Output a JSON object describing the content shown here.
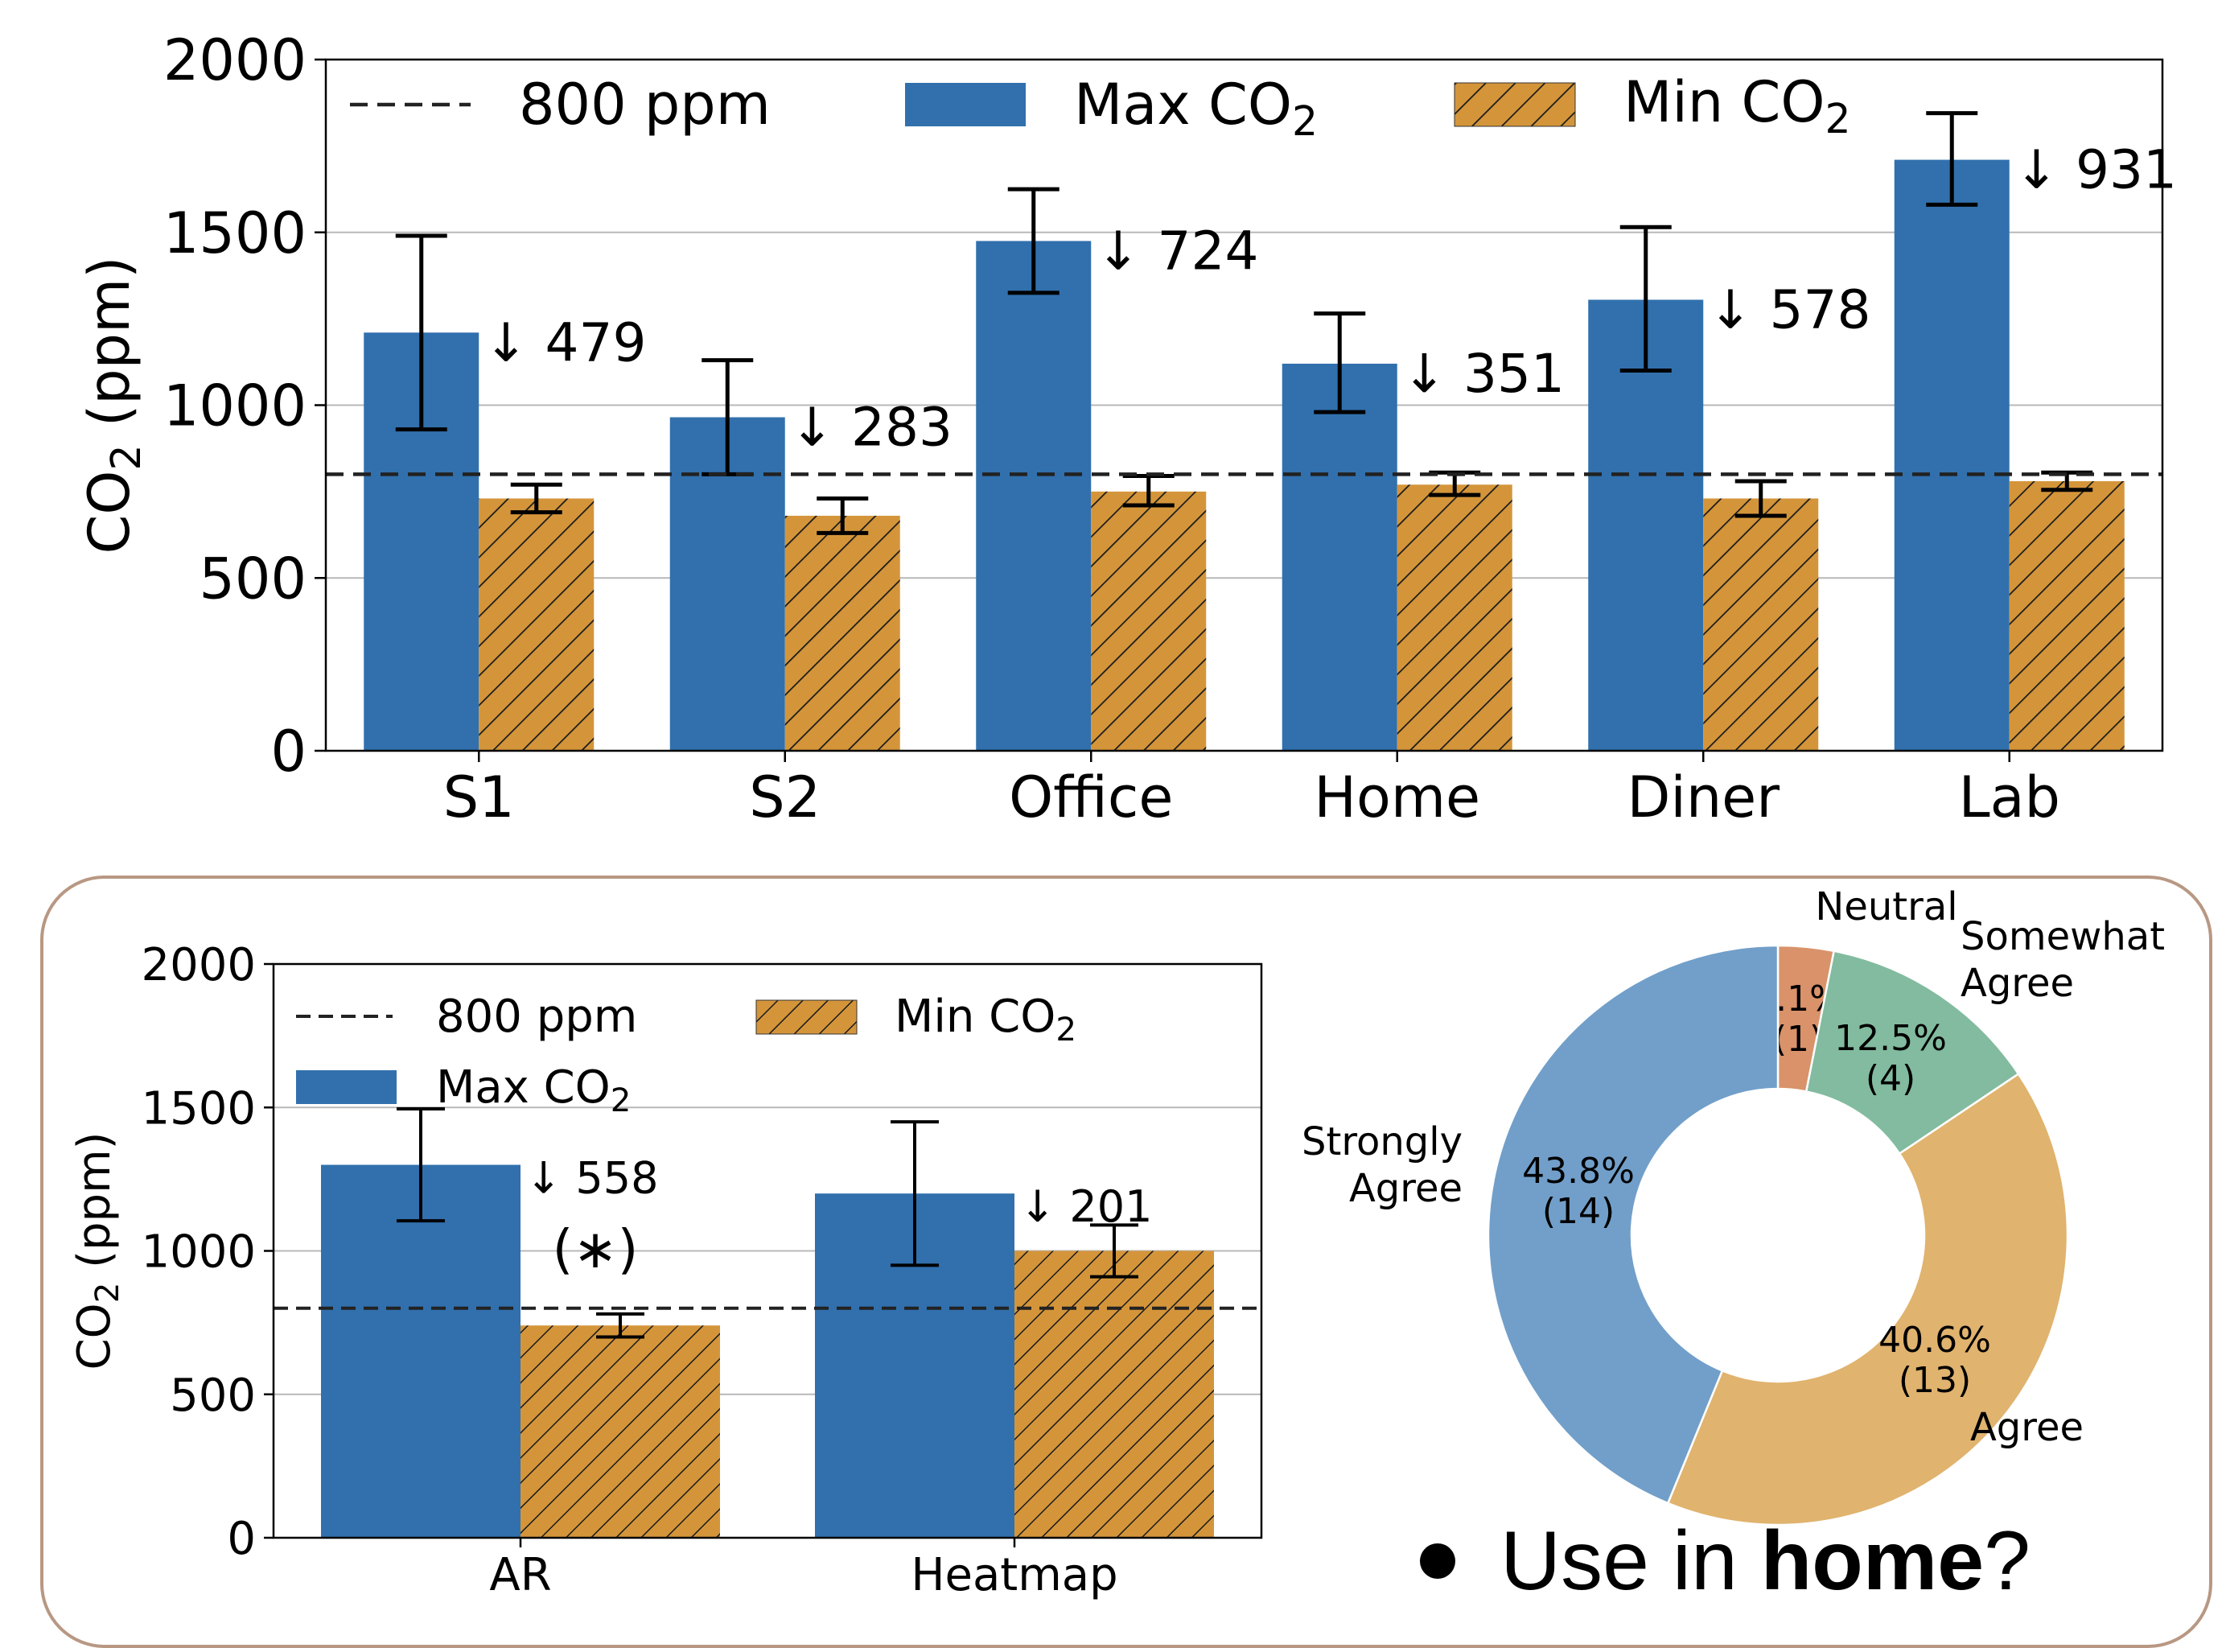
{
  "caption": {
    "prefix": "Use in ",
    "bold": "home",
    "suffix": "?"
  },
  "colors": {
    "max": "#3170ad",
    "min": "#d4953a",
    "hatch": "#1a1a1a",
    "grid": "#b8b8b8",
    "frame": "#b89883"
  },
  "chart_data": [
    {
      "type": "bar",
      "ylabel": "CO₂ (ppm)",
      "ylim": [
        0,
        2000
      ],
      "yticks": [
        0,
        500,
        1000,
        1500,
        2000
      ],
      "grid": "horizontal",
      "legend_position": "top",
      "reference_line": {
        "value": 800,
        "label": "800 ppm",
        "style": "dashed"
      },
      "categories": [
        "S1",
        "S2",
        "Office",
        "Home",
        "Diner",
        "Lab"
      ],
      "series": [
        {
          "name": "Max CO₂",
          "values": [
            1210,
            965,
            1475,
            1120,
            1305,
            1710
          ],
          "err_low": [
            930,
            800,
            1325,
            980,
            1100,
            1580
          ],
          "err_high": [
            1490,
            1130,
            1625,
            1265,
            1515,
            1845
          ]
        },
        {
          "name": "Min CO₂",
          "values": [
            730,
            680,
            750,
            770,
            730,
            780
          ],
          "err_low": [
            690,
            630,
            710,
            740,
            680,
            755
          ],
          "err_high": [
            770,
            730,
            795,
            805,
            780,
            805
          ]
        }
      ],
      "annotations": [
        "↓ 479",
        "↓ 283",
        "↓ 724",
        "↓ 351",
        "↓ 578",
        "↓ 931"
      ]
    },
    {
      "type": "bar",
      "ylabel": "CO₂ (ppm)",
      "ylim": [
        0,
        2000
      ],
      "yticks": [
        0,
        500,
        1000,
        1500,
        2000
      ],
      "grid": "horizontal",
      "legend_position": "top-left",
      "reference_line": {
        "value": 800,
        "label": "800 ppm",
        "style": "dashed"
      },
      "categories": [
        "AR",
        "Heatmap"
      ],
      "series": [
        {
          "name": "Max CO₂",
          "values": [
            1300,
            1200
          ],
          "err_low": [
            1105,
            950
          ],
          "err_high": [
            1495,
            1450
          ]
        },
        {
          "name": "Min CO₂",
          "values": [
            740,
            1000
          ],
          "err_low": [
            700,
            910
          ],
          "err_high": [
            780,
            1090
          ]
        }
      ],
      "annotations": [
        "↓ 558",
        "↓ 201"
      ],
      "significance": "(∗)"
    },
    {
      "type": "pie",
      "style": "donut",
      "slices": [
        {
          "label": "Neutral",
          "value": 3.1,
          "count": 1,
          "pct_text": "3.1%",
          "count_text": "(1)",
          "color": "#d9926a"
        },
        {
          "label": "Somewhat Agree",
          "label_lines": [
            "Somewhat",
            "Agree"
          ],
          "value": 12.5,
          "count": 4,
          "pct_text": "12.5%",
          "count_text": "(4)",
          "color": "#82bb9f"
        },
        {
          "label": "Agree",
          "label_lines": [
            "Agree"
          ],
          "value": 40.6,
          "count": 13,
          "pct_text": "40.6%",
          "count_text": "(13)",
          "color": "#e0b36e"
        },
        {
          "label": "Strongly Agree",
          "label_lines": [
            "Strongly",
            "Agree"
          ],
          "value": 43.8,
          "count": 14,
          "pct_text": "43.8%",
          "count_text": "(14)",
          "color": "#719fc9"
        }
      ]
    }
  ]
}
